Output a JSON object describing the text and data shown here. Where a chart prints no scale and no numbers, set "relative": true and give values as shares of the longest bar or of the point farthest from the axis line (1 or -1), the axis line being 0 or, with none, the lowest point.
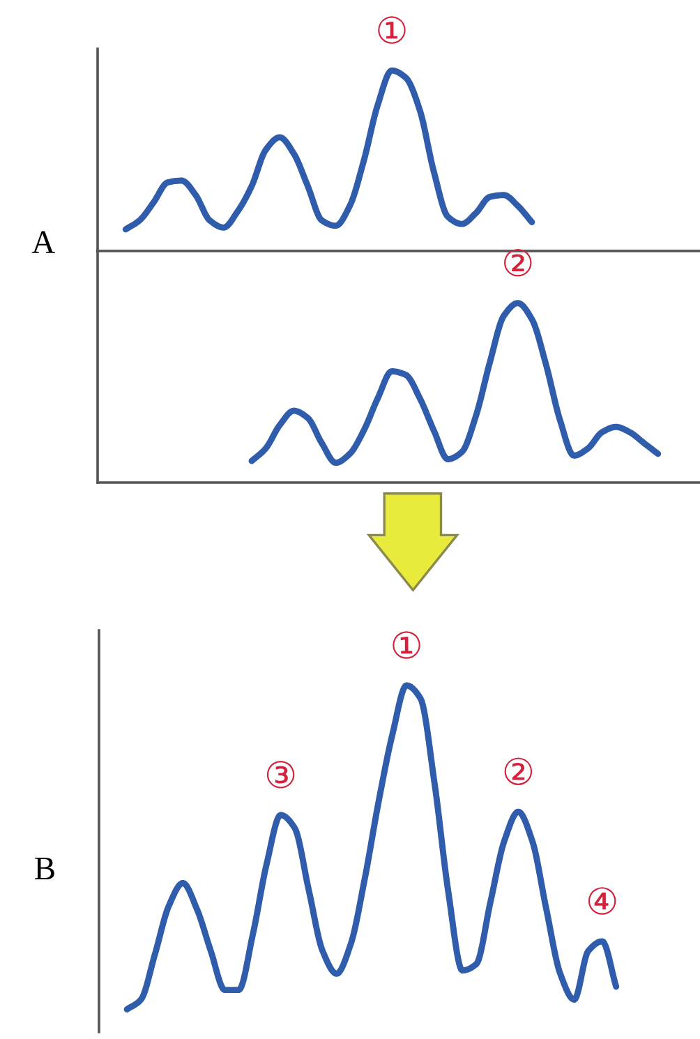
{
  "chart_data": [
    {
      "type": "line",
      "relative": true,
      "ylabel": "A",
      "categories": [
        null,
        null,
        null,
        null,
        null,
        null,
        null,
        null,
        null,
        null,
        null,
        null,
        null,
        null,
        null,
        null,
        null,
        null,
        null,
        null,
        null,
        null,
        null,
        null,
        null,
        null,
        null,
        null,
        null,
        null,
        null,
        null,
        null,
        null,
        null,
        null,
        null,
        null,
        null,
        null,
        null,
        null,
        null,
        null
      ],
      "series": [
        {
          "color": "#2f5cab",
          "values": [
            null,
            null,
            0.12,
            0.17,
            0.27,
            0.38,
            0.39,
            0.31,
            0.17,
            0.13,
            0.22,
            0.36,
            0.56,
            0.63,
            0.54,
            0.36,
            0.17,
            0.14,
            0.25,
            0.5,
            0.81,
            1,
            0.96,
            0.78,
            0.44,
            0.19,
            0.15,
            0.21,
            0.3,
            0.31,
            0.25,
            0.16,
            null,
            null,
            null,
            null,
            null,
            null,
            null,
            null,
            null,
            null,
            null,
            null
          ]
        }
      ],
      "annotations": [
        {
          "text": "①",
          "y": 1
        }
      ]
    },
    {
      "type": "line",
      "relative": true,
      "categories": [
        null,
        null,
        null,
        null,
        null,
        null,
        null,
        null,
        null,
        null,
        null,
        null,
        null,
        null,
        null,
        null,
        null,
        null,
        null,
        null,
        null,
        null,
        null,
        null,
        null,
        null,
        null,
        null,
        null,
        null,
        null,
        null,
        null,
        null,
        null,
        null,
        null,
        null,
        null,
        null,
        null,
        null,
        null,
        null
      ],
      "series": [
        {
          "color": "#2f5cab",
          "values": [
            null,
            null,
            null,
            null,
            null,
            null,
            null,
            null,
            null,
            null,
            null,
            0.12,
            0.19,
            0.32,
            0.4,
            0.36,
            0.22,
            0.11,
            0.16,
            0.29,
            0.47,
            0.62,
            0.6,
            0.47,
            0.29,
            0.13,
            0.17,
            0.37,
            0.67,
            0.93,
            1,
            0.91,
            0.66,
            0.35,
            0.15,
            0.19,
            0.28,
            0.31,
            0.28,
            0.22,
            0.16,
            null,
            null,
            null
          ]
        }
      ],
      "annotations": [
        {
          "text": "②",
          "y": 1
        }
      ]
    },
    {
      "type": "line",
      "relative": true,
      "ylabel": "B",
      "categories": [
        null,
        null,
        null,
        null,
        null,
        null,
        null,
        null,
        null,
        null,
        null,
        null,
        null,
        null,
        null,
        null,
        null,
        null,
        null,
        null,
        null,
        null,
        null,
        null,
        null,
        null,
        null,
        null,
        null,
        null,
        null,
        null,
        null,
        null,
        null,
        null,
        null,
        null,
        null,
        null,
        null,
        null,
        null,
        null
      ],
      "series": [
        {
          "color": "#2f5cab",
          "values": [
            null,
            null,
            0,
            0.03,
            0.17,
            0.32,
            0.39,
            0.31,
            0.18,
            0.06,
            0.06,
            0.23,
            0.45,
            0.6,
            0.56,
            0.37,
            0.18,
            0.11,
            0.2,
            0.4,
            0.64,
            0.85,
            1,
            0.96,
            0.7,
            0.36,
            0.12,
            0.14,
            0.33,
            0.52,
            0.61,
            0.52,
            0.31,
            0.11,
            0.03,
            0.18,
            0.21,
            0.07,
            null,
            null,
            null,
            null,
            null,
            null
          ]
        }
      ],
      "annotations": [
        {
          "text": "①",
          "y": 1
        },
        {
          "text": "②",
          "y": 0.61
        },
        {
          "text": "③",
          "y": 0.6
        },
        {
          "text": "④",
          "y": 0.21
        }
      ]
    }
  ]
}
